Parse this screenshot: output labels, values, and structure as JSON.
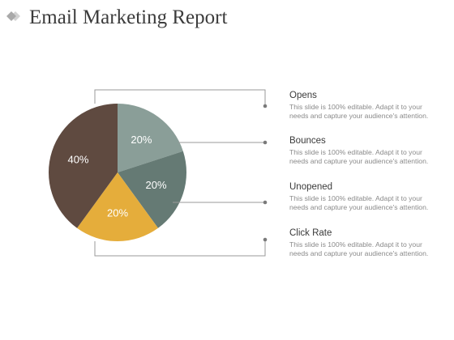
{
  "title": "Email Marketing Report",
  "colors": {
    "title": "#3c3c3c",
    "connector": "#9a9a9a",
    "dot": "#7a7a7a",
    "logo_dark": "#a9a9a9",
    "logo_light": "#d2d2d2"
  },
  "chart_data": {
    "type": "pie",
    "slices": [
      {
        "label": "20%",
        "value": 20,
        "color": "#8a9e98",
        "legend": "Opens"
      },
      {
        "label": "20%",
        "value": 20,
        "color": "#657a74",
        "legend": "Bounces"
      },
      {
        "label": "20%",
        "value": 20,
        "color": "#e5ad3b",
        "legend": "Unopened"
      },
      {
        "label": "40%",
        "value": 40,
        "color": "#5f4a40",
        "legend": "Click Rate"
      }
    ],
    "start_angle_deg": 0,
    "direction": "clockwise",
    "legend_placement": "right"
  },
  "legend": [
    {
      "name": "Opens",
      "desc": "This slide is 100% editable. Adapt it to your needs and capture your audience's attention."
    },
    {
      "name": "Bounces",
      "desc": "This slide is 100% editable. Adapt it to your needs and capture your audience's attention."
    },
    {
      "name": "Unopened",
      "desc": "This slide is 100% editable. Adapt it to your needs and capture your audience's attention."
    },
    {
      "name": "Click Rate",
      "desc": "This slide is 100% editable. Adapt it to your needs and capture your audience's attention."
    }
  ]
}
